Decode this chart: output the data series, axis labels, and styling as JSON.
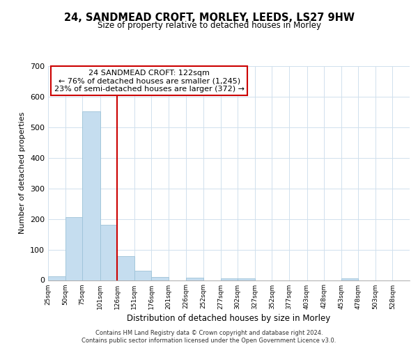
{
  "title1": "24, SANDMEAD CROFT, MORLEY, LEEDS, LS27 9HW",
  "title2": "Size of property relative to detached houses in Morley",
  "xlabel": "Distribution of detached houses by size in Morley",
  "ylabel": "Number of detached properties",
  "bar_edges": [
    25,
    50,
    75,
    101,
    126,
    151,
    176,
    201,
    226,
    252,
    277,
    302,
    327,
    352,
    377,
    403,
    428,
    453,
    478,
    503,
    528
  ],
  "bar_heights": [
    12,
    205,
    553,
    180,
    78,
    30,
    10,
    0,
    8,
    0,
    6,
    6,
    0,
    0,
    0,
    0,
    0,
    5,
    0,
    0,
    0
  ],
  "bar_color": "#c5ddef",
  "bar_edge_color": "#9dc3d8",
  "property_line_x": 126,
  "ylim": [
    0,
    700
  ],
  "yticks": [
    0,
    100,
    200,
    300,
    400,
    500,
    600,
    700
  ],
  "annotation_title": "24 SANDMEAD CROFT: 122sqm",
  "annotation_line1": "← 76% of detached houses are smaller (1,245)",
  "annotation_line2": "23% of semi-detached houses are larger (372) →",
  "annotation_box_color": "#ffffff",
  "annotation_box_edge": "#cc0000",
  "vline_color": "#cc0000",
  "footer1": "Contains HM Land Registry data © Crown copyright and database right 2024.",
  "footer2": "Contains public sector information licensed under the Open Government Licence v3.0.",
  "tick_labels": [
    "25sqm",
    "50sqm",
    "75sqm",
    "101sqm",
    "126sqm",
    "151sqm",
    "176sqm",
    "201sqm",
    "226sqm",
    "252sqm",
    "277sqm",
    "302sqm",
    "327sqm",
    "352sqm",
    "377sqm",
    "403sqm",
    "428sqm",
    "453sqm",
    "478sqm",
    "503sqm",
    "528sqm"
  ],
  "background_color": "#ffffff",
  "grid_color": "#d0e0ed"
}
